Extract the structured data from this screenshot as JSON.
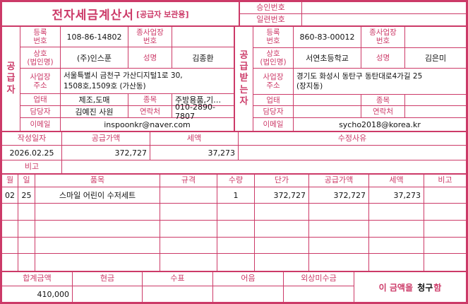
{
  "colors": {
    "accent": "#cc3a68",
    "value_text": "#111111"
  },
  "header": {
    "title": "전자세금계산서",
    "title_suffix": "[공급자 보관용]",
    "approval_no_label": "승인번호",
    "approval_no_value": "",
    "serial_no_label": "일련번호",
    "serial_no_value": ""
  },
  "supplier": {
    "side_label": "공급자",
    "reg_no_label": "등록\n번호",
    "reg_no": "108-86-14802",
    "sub_biz_label": "종사업장\n번호",
    "sub_biz_no": "",
    "company_label": "상호\n(법인명)",
    "company": "(주)인스푼",
    "name_label": "성명",
    "name": "김종환",
    "address_label": "사업장\n주소",
    "address": "서울특별시 금천구 가산디지털1로 30,\n1508호,1509호 (가산동)",
    "biz_type_label": "업태",
    "biz_type": "제조,도매",
    "biz_item_label": "종목",
    "biz_item": "주방용품,기…",
    "manager_label": "담당자",
    "manager": "김예진 사원",
    "contact_label": "연락처",
    "contact": "010-2890-7807",
    "email_label": "이메일",
    "email": "inspoonkr@naver.com"
  },
  "buyer": {
    "side_label": "공급받는자",
    "reg_no_label": "등록\n번호",
    "reg_no": "860-83-00012",
    "sub_biz_label": "종사업장\n번호",
    "sub_biz_no": "",
    "company_label": "상호\n(법인명)",
    "company": "서연초등학교",
    "name_label": "성명",
    "name": "김은미",
    "address_label": "사업장\n주소",
    "address": "경기도 화성시 동탄구 동탄대로4가길 25\n(장지동)",
    "biz_type_label": "업태",
    "biz_type": "",
    "biz_item_label": "종목",
    "biz_item": "",
    "manager_label": "담당자",
    "manager": "",
    "contact_label": "연락처",
    "contact": "",
    "email_label": "이메일",
    "email": "sycho2018@korea.kr"
  },
  "summary": {
    "date_label": "작성일자",
    "date": "2026.02.25",
    "supply_label": "공급가액",
    "supply_amount": "372,727",
    "tax_label": "세액",
    "tax_amount": "37,273",
    "revision_label": "수정사유",
    "revision": "",
    "note_label": "비고",
    "note": ""
  },
  "items": {
    "headers": {
      "month": "월",
      "day": "일",
      "name": "품목",
      "spec": "규격",
      "qty": "수량",
      "unit_price": "단가",
      "supply": "공급가액",
      "tax": "세액",
      "note": "비고"
    },
    "rows": [
      {
        "month": "02",
        "day": "25",
        "name": "스마일 어린이 수저세트",
        "spec": "",
        "qty": "1",
        "unit_price": "372,727",
        "supply": "372,727",
        "tax": "37,273",
        "note": ""
      }
    ]
  },
  "totals": {
    "total_label": "합계금액",
    "total": "410,000",
    "cash_label": "현금",
    "cash": "",
    "check_label": "수표",
    "check": "",
    "bill_label": "어음",
    "bill": "",
    "receivable_label": "외상미수금",
    "receivable": "",
    "statement_prefix": "이 금액을",
    "statement_method": "청구",
    "statement_suffix": "함"
  }
}
